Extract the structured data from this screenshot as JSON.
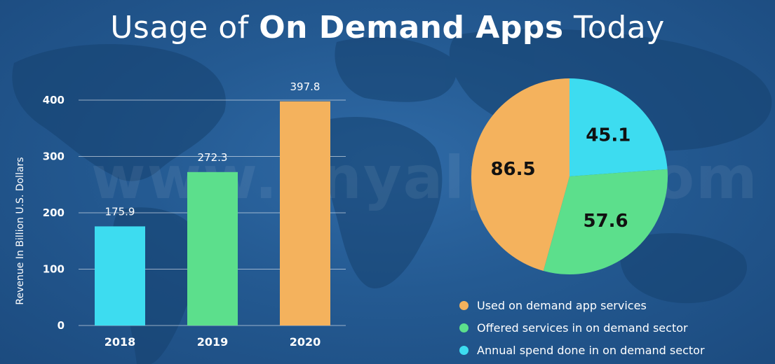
{
  "title": {
    "prefix": "Usage of ",
    "bold": "On Demand Apps",
    "suffix": " Today"
  },
  "watermark": "www.anyalpha.com",
  "colors": {
    "cyan": "#3ddcf0",
    "green": "#5cdf8c",
    "orange": "#f4b25d"
  },
  "chart_data": [
    {
      "type": "bar",
      "categories": [
        "2018",
        "2019",
        "2020"
      ],
      "values": [
        175.9,
        272.3,
        397.8
      ],
      "ylabel": "Revenue In Billion U.S. Dollars",
      "ylim": [
        0,
        400
      ],
      "yticks": [
        0,
        100,
        200,
        300,
        400
      ],
      "grid": true,
      "bar_colors": [
        "#3ddcf0",
        "#5cdf8c",
        "#f4b25d"
      ]
    },
    {
      "type": "pie",
      "labels": [
        "Used on demand app services",
        "Offered services in on demand sector",
        "Annual spend done in on demand sector"
      ],
      "values": [
        86.5,
        57.6,
        45.1
      ],
      "colors": [
        "#f4b25d",
        "#5cdf8c",
        "#3ddcf0"
      ],
      "legend_position": "bottom"
    }
  ]
}
